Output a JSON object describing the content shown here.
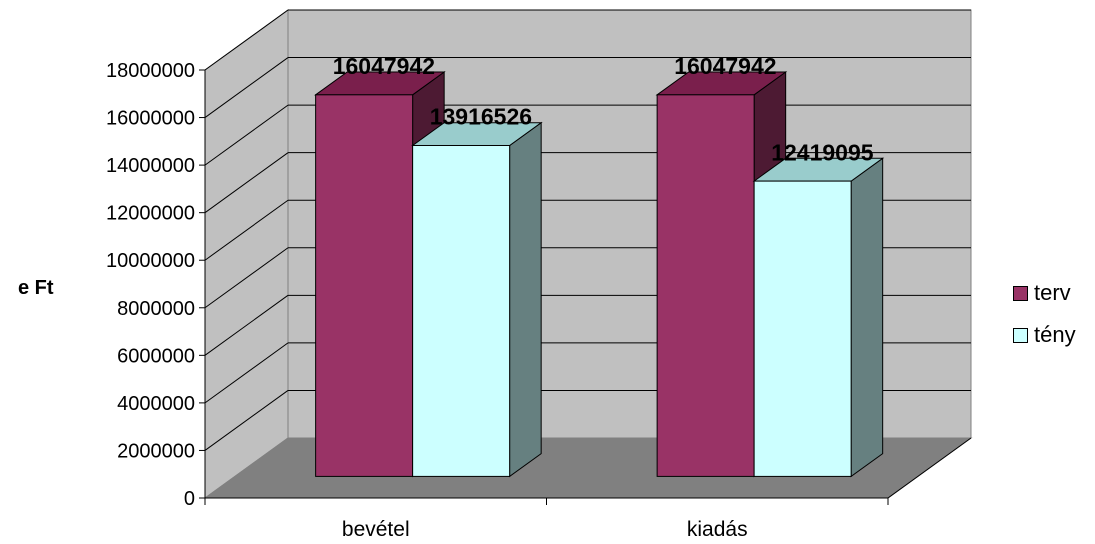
{
  "chart_data": {
    "type": "bar",
    "style": "3d-clustered-column",
    "categories": [
      "bevétel",
      "kiadás"
    ],
    "series": [
      {
        "name": "terv",
        "values": [
          16047942,
          16047942
        ],
        "color": "#993366"
      },
      {
        "name": "tény",
        "values": [
          13916526,
          12419095
        ],
        "color": "#CCFFFF"
      }
    ],
    "title": "",
    "xlabel": "",
    "ylabel": "e Ft",
    "ylim": [
      0,
      18000000
    ],
    "yticks": [
      0,
      2000000,
      4000000,
      6000000,
      8000000,
      10000000,
      12000000,
      14000000,
      16000000,
      18000000
    ],
    "data_labels": true,
    "grid": true,
    "legend_position": "right",
    "colors": {
      "back_wall": "#C0C0C0",
      "side_wall": "#C0C0C0",
      "floor": "#808080",
      "grid": "#000000"
    }
  }
}
